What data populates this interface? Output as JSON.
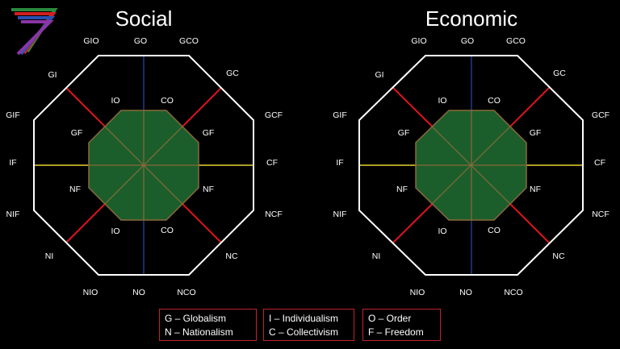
{
  "charts": [
    {
      "title": "Social",
      "outer_labels": {
        "top_left": "GIO",
        "top": "GO",
        "top_right": "GCO",
        "upper_left": "GI",
        "upper_right": "GC",
        "left_upper": "GIF",
        "left": "IF",
        "left_lower": "NIF",
        "right_upper": "GCF",
        "right": "CF",
        "right_lower": "NCF",
        "lower_left": "NI",
        "lower_right": "NC",
        "bottom_left": "NIO",
        "bottom": "NO",
        "bottom_right": "NCO"
      },
      "inner_labels": {
        "io_top": "IO",
        "co_top": "CO",
        "gf_left": "GF",
        "gf_right": "GF",
        "nf_left": "NF",
        "nf_right": "NF",
        "io_bottom": "IO",
        "co_bottom": "CO"
      }
    },
    {
      "title": "Economic",
      "outer_labels": {
        "top_left": "GIO",
        "top": "GO",
        "top_right": "GCO",
        "upper_left": "GI",
        "upper_right": "GC",
        "left_upper": "GIF",
        "left": "IF",
        "left_lower": "NIF",
        "right_upper": "GCF",
        "right": "CF",
        "right_lower": "NCF",
        "lower_left": "NI",
        "lower_right": "NC",
        "bottom_left": "NIO",
        "bottom": "NO",
        "bottom_right": "NCO"
      },
      "inner_labels": {
        "io_top": "IO",
        "co_top": "CO",
        "gf_left": "GF",
        "gf_right": "GF",
        "nf_left": "NF",
        "nf_right": "NF",
        "io_bottom": "IO",
        "co_bottom": "CO"
      }
    }
  ],
  "legend": [
    {
      "line1": "G – Globalism",
      "line2": "N – Nationalism"
    },
    {
      "line1": "I – Individualism",
      "line2": "C – Collectivism"
    },
    {
      "line1": "O – Order",
      "line2": "F – Freedom"
    }
  ],
  "colors": {
    "outline": "#ffffff",
    "vertical_axis": "#1f3a8a",
    "horizontal_axis": "#e6d12f",
    "diagonal_axis": "#e0141c",
    "inner_fill": "#1b5e2b",
    "inner_stroke": "#8a6a3a",
    "legend_border": "#c0242b"
  },
  "logo": {
    "icon": "rainbow-seven-logo"
  }
}
